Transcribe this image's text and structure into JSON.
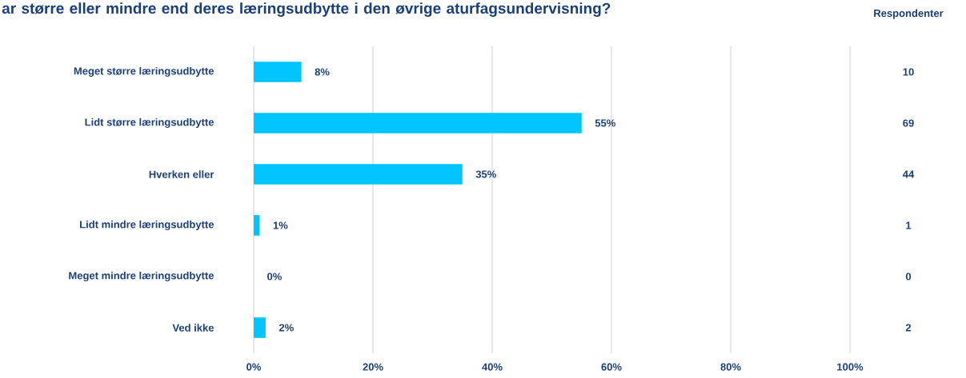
{
  "chart_data": {
    "type": "bar",
    "orientation": "horizontal",
    "title": "ar større eller mindre end deres læringsudbytte i den øvrige aturfagsundervisning?",
    "categories": [
      "Meget større læringsudbytte",
      "Lidt større læringsudbytte",
      "Hverken eller",
      "Lidt mindre læringsudbytte",
      "Meget mindre læringsudbytte",
      "Ved ikke"
    ],
    "values": [
      8,
      55,
      35,
      1,
      0,
      2
    ],
    "value_labels": [
      "8%",
      "55%",
      "35%",
      "1%",
      "0%",
      "2%"
    ],
    "color": "#00c5ff",
    "xlim": [
      0,
      100
    ],
    "xticks": [
      {
        "value": 0,
        "label": "0%"
      },
      {
        "value": 20,
        "label": "20%"
      },
      {
        "value": 40,
        "label": "40%"
      },
      {
        "value": 60,
        "label": "60%"
      },
      {
        "value": 80,
        "label": "80%"
      },
      {
        "value": 100,
        "label": "100%"
      }
    ],
    "grid": "x",
    "annotations": [
      "Respondenter",
      "10",
      "69",
      "44",
      "1",
      "0",
      "2"
    ]
  }
}
